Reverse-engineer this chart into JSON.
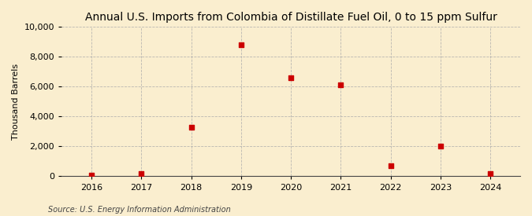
{
  "title": "Annual U.S. Imports from Colombia of Distillate Fuel Oil, 0 to 15 ppm Sulfur",
  "ylabel": "Thousand Barrels",
  "source": "Source: U.S. Energy Information Administration",
  "years": [
    2016,
    2017,
    2018,
    2019,
    2020,
    2021,
    2022,
    2023,
    2024
  ],
  "values": [
    100,
    200,
    3300,
    8800,
    6600,
    6100,
    700,
    2000,
    200
  ],
  "ylim": [
    0,
    10000
  ],
  "yticks": [
    0,
    2000,
    4000,
    6000,
    8000,
    10000
  ],
  "marker_color": "#cc0000",
  "marker": "s",
  "marker_size": 4,
  "bg_color": "#faeecf",
  "grid_color": "#aaaaaa",
  "title_fontsize": 10,
  "label_fontsize": 8,
  "tick_fontsize": 8,
  "source_fontsize": 7
}
